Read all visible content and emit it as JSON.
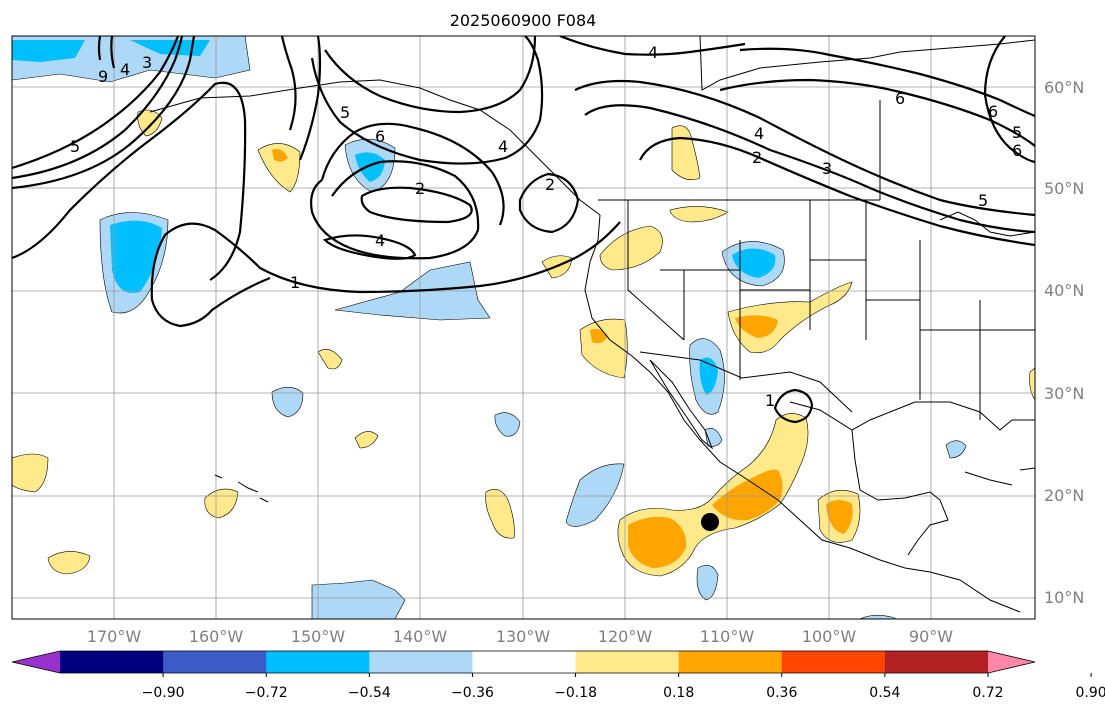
{
  "map": {
    "title": "2025060900 F084",
    "lon_labels": [
      "170°W",
      "160°W",
      "150°W",
      "140°W",
      "130°W",
      "120°W",
      "110°W",
      "100°W",
      "90°W"
    ],
    "lat_labels": [
      "60°N",
      "50°N",
      "40°N",
      "30°N",
      "20°N",
      "10°N"
    ],
    "contour_labels": [
      "4",
      "9",
      "5",
      "6",
      "2",
      "4",
      "1",
      "2",
      "4",
      "3",
      "6",
      "6",
      "5",
      "4",
      "2",
      "4",
      "3",
      "5",
      "6",
      "5",
      "1"
    ],
    "marker": "storm-center-dot"
  },
  "colorbar": {
    "colors": [
      "#9932CC",
      "#000080",
      "#3A5BC8",
      "#00BFFF",
      "#ADD8F6",
      "#FFFFFF",
      "#FFE98A",
      "#FFA500",
      "#FF4500",
      "#B22222",
      "#FF88AA"
    ],
    "tick_labels": [
      "−0.90",
      "−0.72",
      "−0.54",
      "−0.36",
      "−0.18",
      "0.18",
      "0.36",
      "0.54",
      "0.72",
      "0.90"
    ]
  }
}
